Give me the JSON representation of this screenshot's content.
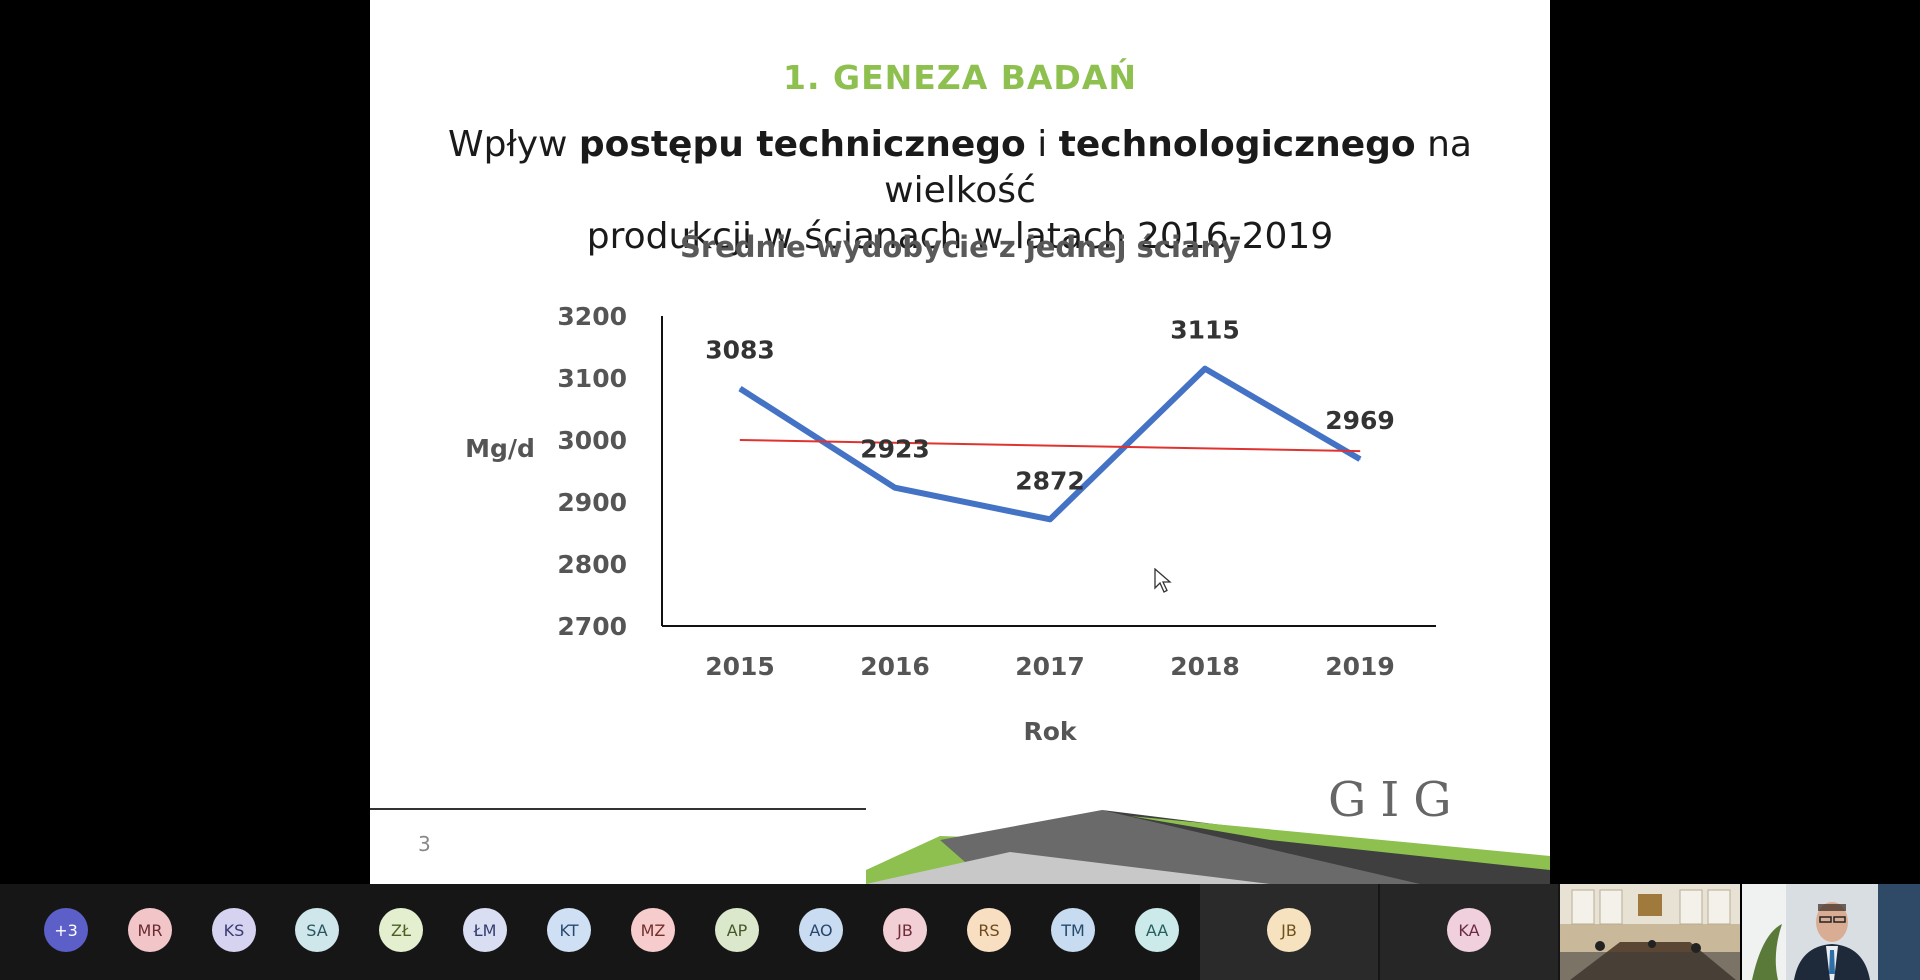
{
  "slide": {
    "section_title": "1. GENEZA BADAŃ",
    "heading_line1_parts": [
      "Wpływ ",
      "postępu technicznego",
      " i ",
      "technologicznego",
      " na wielkość"
    ],
    "heading_line2": "produkcji w ścianach w latach 2016-2019",
    "page_number": "3",
    "logo_text": "GIG"
  },
  "chart_data": {
    "type": "line",
    "title": "Średnie wydobycie z jednej ściany",
    "xlabel": "Rok",
    "ylabel": "Mg/d",
    "categories": [
      "2015",
      "2016",
      "2017",
      "2018",
      "2019"
    ],
    "series": [
      {
        "values": [
          3083,
          2923,
          2872,
          3115,
          2969
        ],
        "color": "#4472c4",
        "labels": [
          "3083",
          "2923",
          "2872",
          "3115",
          "2969"
        ]
      },
      {
        "values": [
          3000,
          2995.5,
          2991,
          2986.5,
          2982
        ],
        "color": "#e0332f"
      }
    ],
    "ylim": [
      2700,
      3200
    ],
    "yticks": [
      "2700",
      "2800",
      "2900",
      "3000",
      "3100",
      "3200"
    ],
    "grid": false
  },
  "participants": [
    {
      "initials": "+3",
      "bg": "#5b5fc7",
      "fg": "#ffffff"
    },
    {
      "initials": "MR",
      "bg": "#f2c6c9",
      "fg": "#6b2b31"
    },
    {
      "initials": "KS",
      "bg": "#d5d3f0",
      "fg": "#3b3a72"
    },
    {
      "initials": "SA",
      "bg": "#cfe6ea",
      "fg": "#2a5560"
    },
    {
      "initials": "ZŁ",
      "bg": "#e3efcf",
      "fg": "#4c6024"
    },
    {
      "initials": "ŁM",
      "bg": "#d9def2",
      "fg": "#333e6e"
    },
    {
      "initials": "KT",
      "bg": "#cfe0f4",
      "fg": "#284a70"
    },
    {
      "initials": "MZ",
      "bg": "#f6cdcc",
      "fg": "#742f2c"
    },
    {
      "initials": "AP",
      "bg": "#dbe8cc",
      "fg": "#45592a"
    },
    {
      "initials": "AO",
      "bg": "#c9dcf1",
      "fg": "#27476b"
    },
    {
      "initials": "JB",
      "bg": "#f1cfd4",
      "fg": "#6e2d38"
    },
    {
      "initials": "RS",
      "bg": "#f8dfc2",
      "fg": "#6e4a1d"
    },
    {
      "initials": "TM",
      "bg": "#c7dcf0",
      "fg": "#264a6c"
    },
    {
      "initials": "AA",
      "bg": "#cdeaea",
      "fg": "#285e5e"
    },
    {
      "initials": "JB",
      "bg": "#f6e2bf",
      "fg": "#6e521c"
    },
    {
      "initials": "KA",
      "bg": "#f1d0de",
      "fg": "#6b2b45"
    }
  ]
}
